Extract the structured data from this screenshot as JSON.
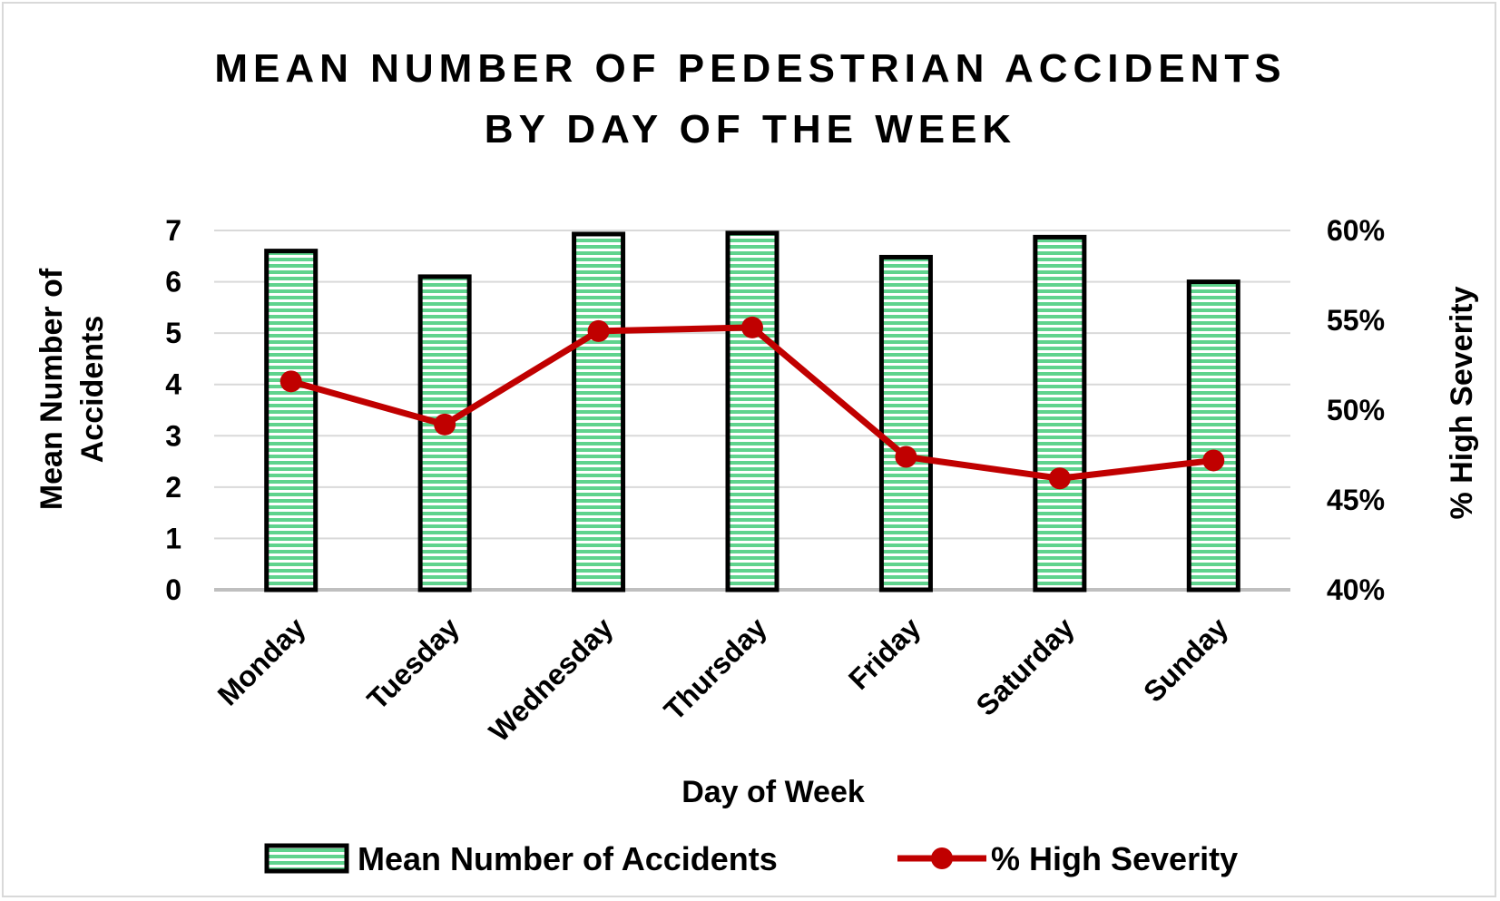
{
  "chart_data": {
    "type": "bar",
    "title": [
      "MEAN NUMBER OF PEDESTRIAN ACCIDENTS",
      "BY DAY OF THE WEEK"
    ],
    "xlabel": "Day of Week",
    "ylabel": [
      "Mean Number of",
      "Accidents"
    ],
    "y2label": "% High Severity",
    "categories": [
      "Monday",
      "Tuesday",
      "Wednesday",
      "Thursday",
      "Friday",
      "Saturday",
      "Sunday"
    ],
    "ylim": [
      0,
      7
    ],
    "yticks": [
      "0",
      "1",
      "2",
      "3",
      "4",
      "5",
      "6",
      "7"
    ],
    "y2lim": [
      0.4,
      0.6
    ],
    "y2ticks": [
      "40%",
      "45%",
      "50%",
      "55%",
      "60%"
    ],
    "grid": true,
    "legend_position": "bottom",
    "series": [
      {
        "name": "Mean Number of Accidents",
        "type": "bar",
        "axis": "left",
        "values": [
          6.6,
          6.1,
          6.93,
          6.95,
          6.48,
          6.87,
          6.0
        ],
        "color": "#5fd38d",
        "border": "#000000"
      },
      {
        "name": "% High Severity",
        "type": "line",
        "axis": "right",
        "values": [
          0.516,
          0.492,
          0.544,
          0.546,
          0.474,
          0.462,
          0.472
        ],
        "color": "#c00000"
      }
    ]
  }
}
